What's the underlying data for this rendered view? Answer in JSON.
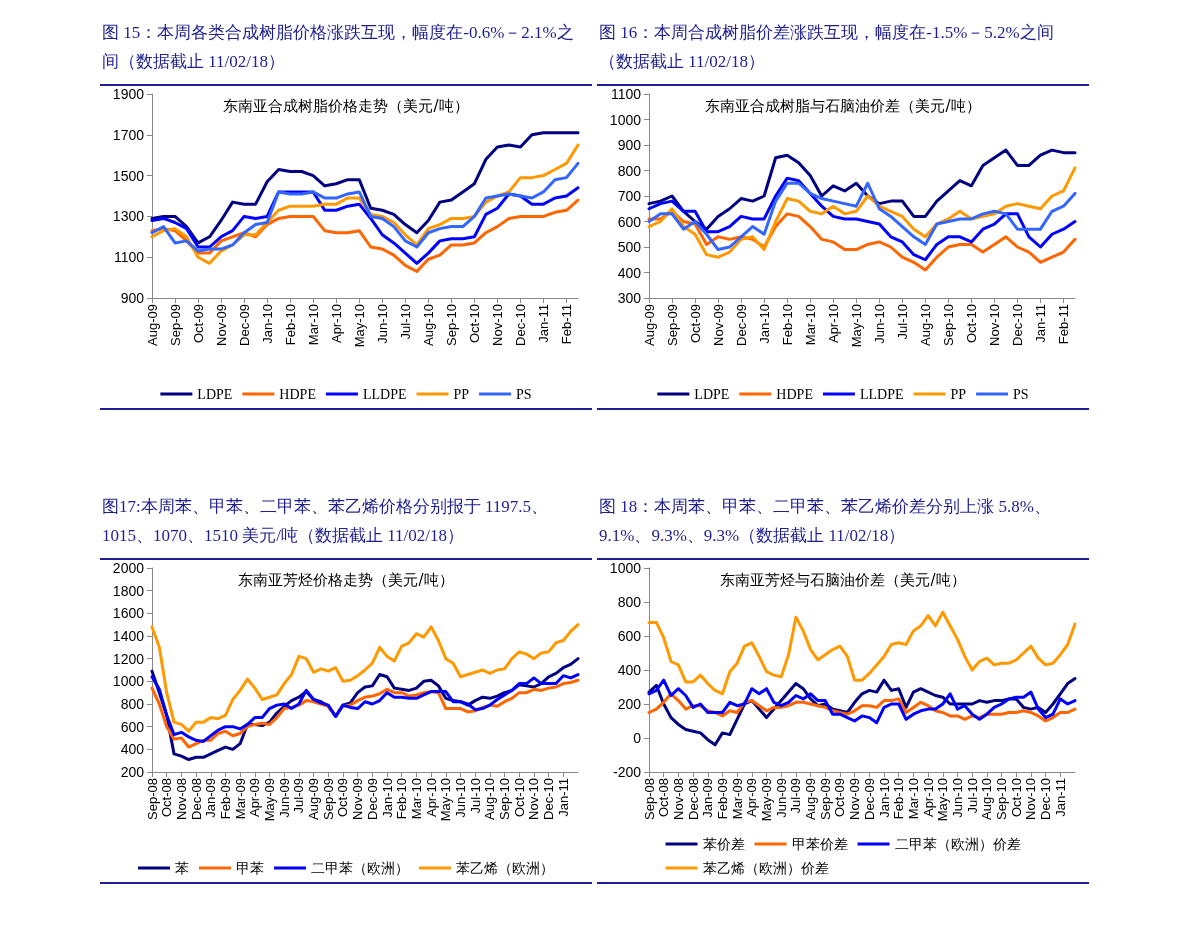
{
  "chart_data": [
    {
      "type": "line",
      "title": "图 15：本周各类合成树脂价格涨跌互现，幅度在-0.6%－2.1%之间（数据截止 11/02/18）",
      "subtitle": "东南亚合成树脂价格走势（美元/吨）",
      "legend": "bottom",
      "grid": false,
      "marker": "none",
      "line_style": "solid",
      "categories": [
        "Aug-09",
        null,
        "Sep-09",
        null,
        "Oct-09",
        null,
        "Nov-09",
        null,
        "Dec-09",
        null,
        "Jan-10",
        null,
        "Feb-10",
        null,
        "Mar-10",
        null,
        "Apr-10",
        null,
        "May-10",
        null,
        "Jun-10",
        null,
        "Jul-10",
        null,
        "Aug-10",
        null,
        "Sep-10",
        null,
        "Oct-10",
        null,
        "Nov-10",
        null,
        "Dec-10",
        null,
        "Jan-11",
        null,
        "Feb-11",
        null
      ],
      "ylim": [
        900,
        1900
      ],
      "yticks": [
        900,
        1100,
        1300,
        1500,
        1700,
        1900
      ],
      "series": [
        {
          "name": "LDPE",
          "color": "#000080",
          "values": [
            1290,
            1300,
            1300,
            1250,
            1170,
            1200,
            1280,
            1370,
            1360,
            1360,
            1470,
            1530,
            1520,
            1520,
            1500,
            1450,
            1460,
            1480,
            1480,
            1340,
            1330,
            1310,
            1260,
            1220,
            1280,
            1370,
            1380,
            1420,
            1460,
            1580,
            1640,
            1650,
            1640,
            1700,
            1710,
            1710,
            1710,
            1710
          ]
        },
        {
          "name": "HDPE",
          "color": "#ff6600",
          "values": [
            1230,
            1240,
            1230,
            1180,
            1120,
            1120,
            1180,
            1200,
            1220,
            1200,
            1260,
            1290,
            1300,
            1300,
            1300,
            1230,
            1220,
            1220,
            1230,
            1150,
            1140,
            1110,
            1060,
            1030,
            1090,
            1110,
            1160,
            1160,
            1170,
            1220,
            1250,
            1290,
            1300,
            1300,
            1300,
            1320,
            1330,
            1380
          ]
        },
        {
          "name": "LLDPE",
          "color": "#0000ff",
          "values": [
            1280,
            1290,
            1270,
            1240,
            1150,
            1150,
            1200,
            1230,
            1300,
            1290,
            1300,
            1420,
            1420,
            1420,
            1420,
            1330,
            1330,
            1350,
            1360,
            1290,
            1210,
            1170,
            1120,
            1070,
            1120,
            1180,
            1190,
            1190,
            1200,
            1310,
            1340,
            1410,
            1400,
            1360,
            1360,
            1390,
            1400,
            1440
          ]
        },
        {
          "name": "PP",
          "color": "#ff9900",
          "values": [
            1200,
            1230,
            1240,
            1200,
            1100,
            1070,
            1130,
            1160,
            1210,
            1210,
            1270,
            1330,
            1350,
            1350,
            1350,
            1360,
            1360,
            1390,
            1390,
            1310,
            1300,
            1270,
            1210,
            1160,
            1240,
            1260,
            1290,
            1290,
            1300,
            1370,
            1400,
            1420,
            1490,
            1490,
            1500,
            1530,
            1560,
            1650
          ]
        },
        {
          "name": "PS",
          "color": "#3366ff",
          "values": [
            1220,
            1250,
            1170,
            1180,
            1130,
            1140,
            1140,
            1160,
            1220,
            1260,
            1270,
            1420,
            1410,
            1410,
            1420,
            1390,
            1390,
            1410,
            1420,
            1300,
            1290,
            1250,
            1180,
            1150,
            1220,
            1240,
            1250,
            1250,
            1300,
            1390,
            1400,
            1410,
            1400,
            1390,
            1420,
            1480,
            1490,
            1560
          ]
        }
      ]
    },
    {
      "type": "line",
      "title": "图 16：本周合成树脂价差涨跌互现，幅度在-1.5%－5.2%之间（数据截止 11/02/18）",
      "subtitle": "东南亚合成树脂与石脑油价差（美元/吨）",
      "legend": "bottom",
      "grid": false,
      "marker": "none",
      "line_style": "solid",
      "categories": [
        "Aug-09",
        null,
        "Sep-09",
        null,
        "Oct-09",
        null,
        "Nov-09",
        null,
        "Dec-09",
        null,
        "Jan-10",
        null,
        "Feb-10",
        null,
        "Mar-10",
        null,
        "Apr-10",
        null,
        "May-10",
        null,
        "Jun-10",
        null,
        "Jul-10",
        null,
        "Aug-10",
        null,
        "Sep-10",
        null,
        "Oct-10",
        null,
        "Nov-10",
        null,
        "Dec-10",
        null,
        "Jan-11",
        null,
        "Feb-11",
        null
      ],
      "ylim": [
        300,
        1100
      ],
      "yticks": [
        300,
        400,
        500,
        600,
        700,
        800,
        900,
        1000,
        1100
      ],
      "series": [
        {
          "name": "LDPE",
          "color": "#000080",
          "values": [
            670,
            680,
            700,
            640,
            600,
            570,
            620,
            650,
            690,
            680,
            700,
            850,
            860,
            830,
            780,
            700,
            740,
            720,
            750,
            700,
            670,
            680,
            680,
            620,
            620,
            680,
            720,
            760,
            740,
            820,
            850,
            880,
            820,
            820,
            860,
            880,
            870,
            870
          ]
        },
        {
          "name": "HDPE",
          "color": "#ff6600",
          "values": [
            610,
            610,
            640,
            600,
            590,
            510,
            540,
            530,
            540,
            530,
            500,
            580,
            630,
            620,
            580,
            530,
            520,
            490,
            490,
            510,
            520,
            500,
            460,
            440,
            410,
            460,
            500,
            510,
            510,
            480,
            510,
            540,
            500,
            480,
            440,
            460,
            480,
            530
          ]
        },
        {
          "name": "LLDPE",
          "color": "#0000ff",
          "values": [
            650,
            670,
            680,
            640,
            640,
            560,
            560,
            580,
            620,
            610,
            610,
            700,
            770,
            760,
            710,
            660,
            620,
            610,
            610,
            600,
            590,
            540,
            520,
            470,
            450,
            510,
            540,
            540,
            520,
            570,
            590,
            630,
            630,
            540,
            500,
            550,
            570,
            600
          ]
        },
        {
          "name": "PP",
          "color": "#ff9900",
          "values": [
            580,
            600,
            650,
            580,
            550,
            470,
            460,
            480,
            530,
            540,
            490,
            600,
            690,
            680,
            640,
            630,
            660,
            630,
            640,
            700,
            660,
            640,
            620,
            570,
            540,
            590,
            610,
            640,
            610,
            620,
            630,
            660,
            670,
            660,
            650,
            700,
            720,
            810
          ]
        },
        {
          "name": "PS",
          "color": "#3366ff",
          "values": [
            600,
            630,
            630,
            570,
            600,
            550,
            490,
            500,
            540,
            580,
            550,
            680,
            750,
            750,
            710,
            690,
            680,
            670,
            660,
            750,
            650,
            620,
            580,
            540,
            510,
            590,
            600,
            610,
            610,
            630,
            640,
            630,
            570,
            570,
            570,
            640,
            660,
            710
          ]
        }
      ]
    },
    {
      "type": "line",
      "title": "图17:本周苯、甲苯、二甲苯、苯乙烯价格分别报于 1197.5、1015、1070、1510 美元/吨（数据截止 11/02/18）",
      "subtitle": "东南亚芳烃价格走势（美元/吨）",
      "legend": "bottom",
      "grid": false,
      "marker": "none",
      "line_style": "solid",
      "categories": [
        "Sep-08",
        null,
        "Oct-08",
        null,
        "Nov-08",
        null,
        "Dec-08",
        null,
        "Jan-09",
        null,
        "Feb-09",
        null,
        "Mar-09",
        null,
        "Apr-09",
        null,
        "May-09",
        null,
        "Jun-09",
        null,
        "Jul-09",
        null,
        "Aug-09",
        null,
        "Sep-09",
        null,
        "Oct-09",
        null,
        "Nov-09",
        null,
        "Dec-09",
        null,
        "Jan-10",
        null,
        "Feb-10",
        null,
        "Mar-10",
        null,
        "Apr-10",
        null,
        "May-10",
        null,
        "Jun-10",
        null,
        "Jul-10",
        null,
        "Aug-10",
        null,
        "Sep-10",
        null,
        "Oct-10",
        null,
        "Nov-10",
        null,
        "Dec-10",
        null,
        "Jan-11",
        null,
        null
      ],
      "ylim": [
        200,
        2000
      ],
      "yticks": [
        200,
        400,
        600,
        800,
        1000,
        1200,
        1400,
        1600,
        1800,
        2000
      ],
      "series": [
        {
          "name": "苯",
          "color": "#000080",
          "values": [
            1090,
            900,
            700,
            360,
            340,
            310,
            330,
            330,
            360,
            390,
            420,
            400,
            450,
            620,
            620,
            610,
            640,
            720,
            780,
            830,
            860,
            910,
            840,
            820,
            780,
            690,
            790,
            810,
            900,
            950,
            960,
            1060,
            1040,
            940,
            930,
            920,
            940,
            1000,
            1010,
            960,
            850,
            830,
            820,
            790,
            830,
            860,
            850,
            870,
            900,
            920,
            970,
            960,
            950,
            980,
            1040,
            1070,
            1120,
            1150,
            1200
          ]
        },
        {
          "name": "甲苯",
          "color": "#ff6600",
          "values": [
            940,
            800,
            600,
            490,
            500,
            420,
            450,
            480,
            480,
            540,
            560,
            520,
            540,
            600,
            620,
            630,
            620,
            680,
            760,
            770,
            790,
            830,
            820,
            800,
            780,
            700,
            780,
            790,
            830,
            860,
            870,
            890,
            930,
            900,
            900,
            870,
            880,
            900,
            910,
            900,
            760,
            760,
            760,
            730,
            740,
            770,
            790,
            780,
            820,
            850,
            900,
            900,
            930,
            920,
            940,
            950,
            980,
            990,
            1010
          ]
        },
        {
          "name": "二甲苯（欧洲）",
          "color": "#0000ff",
          "values": [
            1040,
            930,
            700,
            530,
            550,
            510,
            480,
            470,
            520,
            570,
            600,
            600,
            580,
            620,
            680,
            680,
            760,
            790,
            800,
            760,
            800,
            920,
            840,
            810,
            790,
            690,
            790,
            770,
            760,
            820,
            800,
            830,
            900,
            860,
            860,
            850,
            850,
            880,
            910,
            910,
            910,
            820,
            820,
            800,
            750,
            760,
            790,
            840,
            880,
            920,
            980,
            980,
            1030,
            980,
            980,
            980,
            1050,
            1030,
            1060
          ]
        },
        {
          "name": "苯乙烯（欧洲）",
          "color": "#ff9900",
          "values": [
            1480,
            1300,
            900,
            640,
            620,
            560,
            640,
            640,
            680,
            670,
            700,
            840,
            920,
            1020,
            940,
            840,
            860,
            880,
            980,
            1060,
            1220,
            1200,
            1080,
            1110,
            1090,
            1120,
            1000,
            1010,
            1050,
            1100,
            1160,
            1300,
            1220,
            1180,
            1310,
            1340,
            1420,
            1390,
            1480,
            1360,
            1200,
            1160,
            1040,
            1060,
            1080,
            1100,
            1070,
            1100,
            1110,
            1200,
            1260,
            1240,
            1200,
            1250,
            1260,
            1340,
            1360,
            1440,
            1500
          ]
        }
      ]
    },
    {
      "type": "line",
      "title": "图 18：本周苯、甲苯、二甲苯、苯乙烯价差分别上涨 5.8%、9.1%、9.3%、9.3%（数据截止 11/02/18）",
      "subtitle": "东南亚芳烃与石脑油价差（美元/吨）",
      "legend": "bottom",
      "grid": false,
      "marker": "none",
      "line_style": "solid",
      "categories": [
        "Sep-08",
        null,
        "Oct-08",
        null,
        "Nov-08",
        null,
        "Dec-08",
        null,
        "Jan-09",
        null,
        "Feb-09",
        null,
        "Mar-09",
        null,
        "Apr-09",
        null,
        "May-09",
        null,
        "Jun-09",
        null,
        "Jul-09",
        null,
        "Aug-09",
        null,
        "Sep-09",
        null,
        "Oct-09",
        null,
        "Nov-09",
        null,
        "Dec-09",
        null,
        "Jan-10",
        null,
        "Feb-10",
        null,
        "Mar-10",
        null,
        "Apr-10",
        null,
        "May-10",
        null,
        "Jun-10",
        null,
        "Jul-10",
        null,
        "Aug-10",
        null,
        "Sep-10",
        null,
        "Oct-10",
        null,
        "Nov-10",
        null,
        "Dec-10",
        null,
        "Jan-11",
        null,
        null
      ],
      "ylim": [
        -200,
        1000
      ],
      "yticks": [
        -200,
        0,
        200,
        400,
        600,
        800,
        1000
      ],
      "series": [
        {
          "name": "苯价差",
          "color": "#000080",
          "values": [
            270,
            310,
            200,
            120,
            80,
            50,
            40,
            30,
            -10,
            -40,
            30,
            20,
            110,
            200,
            220,
            170,
            120,
            170,
            220,
            270,
            320,
            290,
            230,
            190,
            200,
            170,
            160,
            150,
            210,
            260,
            280,
            270,
            340,
            280,
            290,
            180,
            270,
            290,
            270,
            250,
            240,
            200,
            200,
            200,
            200,
            220,
            210,
            220,
            220,
            230,
            230,
            180,
            170,
            180,
            150,
            200,
            260,
            320,
            350
          ]
        },
        {
          "name": "甲苯价差",
          "color": "#ff6600",
          "values": [
            150,
            170,
            210,
            260,
            220,
            170,
            190,
            190,
            160,
            150,
            130,
            160,
            150,
            210,
            220,
            190,
            160,
            180,
            180,
            190,
            210,
            210,
            200,
            190,
            180,
            160,
            150,
            140,
            160,
            190,
            190,
            180,
            220,
            220,
            230,
            150,
            180,
            210,
            190,
            160,
            150,
            130,
            130,
            110,
            130,
            120,
            140,
            140,
            140,
            150,
            150,
            160,
            150,
            130,
            100,
            120,
            150,
            150,
            170
          ]
        },
        {
          "name": "二甲苯（欧洲）价差",
          "color": "#0000ff",
          "values": [
            260,
            280,
            340,
            250,
            290,
            250,
            180,
            200,
            150,
            150,
            150,
            210,
            190,
            200,
            290,
            260,
            290,
            210,
            190,
            210,
            250,
            230,
            260,
            220,
            220,
            140,
            140,
            120,
            100,
            130,
            120,
            90,
            180,
            200,
            200,
            110,
            140,
            160,
            170,
            170,
            200,
            260,
            170,
            190,
            140,
            110,
            140,
            180,
            200,
            230,
            240,
            240,
            270,
            170,
            120,
            140,
            230,
            200,
            220
          ]
        },
        {
          "name": "苯乙烯（欧洲）价差",
          "color": "#ff9900",
          "values": [
            680,
            680,
            590,
            450,
            430,
            330,
            330,
            370,
            320,
            280,
            260,
            390,
            440,
            540,
            560,
            480,
            390,
            370,
            360,
            490,
            710,
            630,
            520,
            460,
            490,
            520,
            540,
            480,
            340,
            340,
            380,
            430,
            480,
            550,
            560,
            550,
            630,
            660,
            720,
            660,
            740,
            660,
            580,
            480,
            400,
            450,
            470,
            430,
            440,
            440,
            460,
            500,
            540,
            470,
            430,
            440,
            490,
            550,
            670
          ]
        }
      ]
    }
  ]
}
